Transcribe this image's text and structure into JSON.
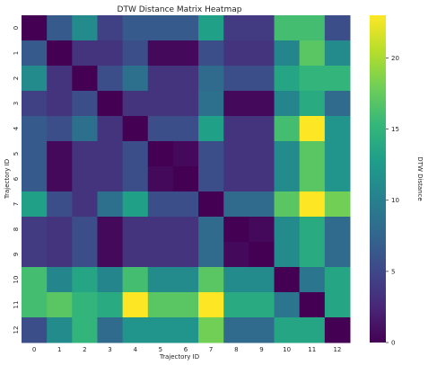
{
  "chart_data": {
    "type": "heatmap",
    "title": "DTW Distance Matrix Heatmap",
    "xlabel": "Trajectory ID",
    "ylabel": "Trajectory ID",
    "colorbar_label": "DTW Distance",
    "colormap": "viridis",
    "vmin": 0,
    "vmax": 23,
    "colorbar_ticks": [
      0,
      5,
      10,
      15,
      20
    ],
    "x_categories": [
      "0",
      "1",
      "2",
      "3",
      "4",
      "5",
      "6",
      "7",
      "8",
      "9",
      "10",
      "11",
      "12"
    ],
    "y_categories": [
      "0",
      "1",
      "2",
      "3",
      "4",
      "5",
      "6",
      "7",
      "8",
      "9",
      "10",
      "11",
      "12"
    ],
    "values": [
      [
        0.0,
        6.5,
        11.0,
        4.5,
        6.5,
        6.5,
        6.5,
        13.0,
        4.0,
        4.0,
        16.0,
        16.0,
        5.5
      ],
      [
        6.5,
        0.0,
        3.5,
        3.5,
        5.5,
        0.5,
        0.5,
        5.5,
        3.5,
        3.5,
        10.5,
        17.0,
        11.0
      ],
      [
        11.0,
        3.5,
        0.0,
        5.5,
        8.5,
        3.5,
        3.5,
        8.0,
        5.5,
        5.5,
        13.5,
        15.0,
        15.0
      ],
      [
        4.5,
        3.5,
        5.5,
        0.0,
        3.5,
        3.5,
        3.5,
        8.5,
        0.5,
        0.5,
        10.5,
        14.0,
        8.0
      ],
      [
        6.5,
        5.5,
        8.5,
        3.5,
        0.0,
        5.5,
        5.5,
        13.0,
        3.5,
        3.5,
        16.0,
        23.0,
        12.0
      ],
      [
        6.5,
        0.5,
        3.5,
        3.5,
        5.5,
        0.0,
        0.5,
        5.5,
        3.5,
        3.5,
        11.0,
        17.0,
        12.0
      ],
      [
        6.5,
        0.5,
        3.5,
        3.5,
        5.5,
        0.5,
        0.0,
        5.5,
        3.5,
        3.5,
        11.0,
        17.0,
        12.0
      ],
      [
        13.0,
        5.5,
        3.5,
        8.5,
        13.0,
        5.5,
        5.5,
        0.0,
        8.0,
        8.0,
        17.0,
        23.0,
        18.0
      ],
      [
        4.0,
        3.5,
        5.5,
        0.5,
        3.5,
        3.5,
        3.5,
        8.0,
        0.0,
        0.5,
        11.0,
        14.0,
        8.0
      ],
      [
        4.0,
        3.5,
        5.5,
        0.5,
        3.5,
        3.5,
        3.5,
        8.0,
        0.5,
        0.0,
        11.0,
        14.0,
        8.0
      ],
      [
        16.0,
        10.5,
        13.5,
        10.5,
        16.0,
        11.0,
        11.0,
        17.0,
        11.0,
        11.0,
        0.0,
        9.0,
        13.5
      ],
      [
        16.0,
        17.0,
        15.0,
        14.0,
        23.0,
        17.0,
        17.0,
        23.0,
        14.0,
        14.0,
        9.0,
        0.0,
        13.5
      ],
      [
        5.5,
        11.0,
        15.0,
        8.0,
        12.0,
        12.0,
        12.0,
        18.0,
        8.0,
        8.0,
        13.5,
        13.5,
        0.0
      ]
    ]
  }
}
